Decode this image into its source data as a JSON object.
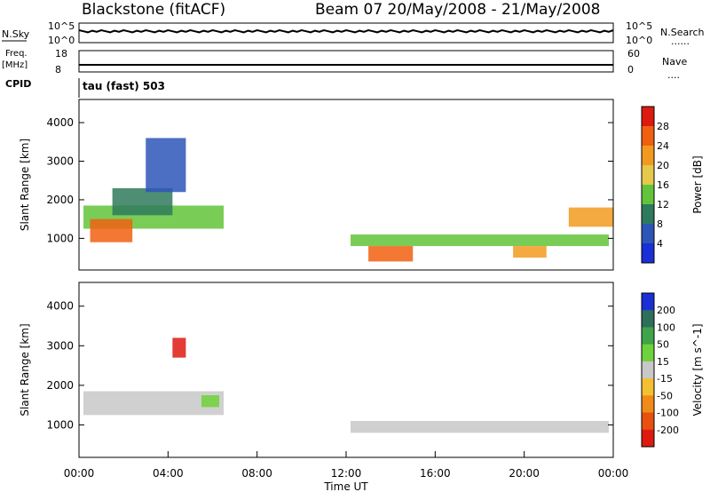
{
  "header": {
    "station": "Blackstone (fitACF)",
    "beam_dates": "Beam 07  20/May/2008 - 21/May/2008"
  },
  "strip_nsky": {
    "left_label": "N.Sky",
    "tick_top": "10^5",
    "tick_bottom": "10^0",
    "right_label": "N.Search",
    "right_legend": "......",
    "right_tick_top": "10^5",
    "right_tick_bottom": "10^0"
  },
  "strip_freq": {
    "left_label_1": "Freq.",
    "left_label_2": "[MHz]",
    "tick_top": "18",
    "tick_bottom": "8",
    "right_label": "Nave",
    "right_legend": "....",
    "right_tick_top": "60",
    "right_tick_bottom": "0"
  },
  "cpid": {
    "label": "CPID",
    "value": "tau (fast) 503"
  },
  "chart_data": [
    {
      "type": "heatmap",
      "name": "power",
      "ylabel": "Slant Range [km]",
      "yticks": [
        "1000",
        "2000",
        "3000",
        "4000"
      ],
      "ylim": [
        180,
        4600
      ],
      "colorbar_label": "Power [dB]",
      "colorbar_ticks": [
        "4",
        "8",
        "12",
        "16",
        "20",
        "24",
        "28"
      ],
      "colors": [
        "#1a2fd6",
        "#2d55b8",
        "#2e7a5c",
        "#62c43a",
        "#e6c84a",
        "#f29a20",
        "#f06010",
        "#dd1a10"
      ],
      "regions_hours_km": [
        {
          "t0": 0.2,
          "t1": 6.5,
          "r0": 1250,
          "r1": 1850,
          "level": 3
        },
        {
          "t0": 0.5,
          "t1": 2.4,
          "r0": 900,
          "r1": 1500,
          "level": 6
        },
        {
          "t0": 1.5,
          "t1": 4.2,
          "r0": 1600,
          "r1": 2300,
          "level": 2
        },
        {
          "t0": 3.0,
          "t1": 4.8,
          "r0": 2200,
          "r1": 3600,
          "level": 1
        },
        {
          "t0": 12.2,
          "t1": 23.8,
          "r0": 800,
          "r1": 1100,
          "level": 3
        },
        {
          "t0": 13.0,
          "t1": 15.0,
          "r0": 400,
          "r1": 800,
          "level": 6
        },
        {
          "t0": 19.5,
          "t1": 21.0,
          "r0": 500,
          "r1": 800,
          "level": 5
        },
        {
          "t0": 22.0,
          "t1": 24.0,
          "r0": 1300,
          "r1": 1800,
          "level": 5
        }
      ]
    },
    {
      "type": "heatmap",
      "name": "velocity",
      "ylabel": "Slant Range [km]",
      "yticks": [
        "1000",
        "2000",
        "3000",
        "4000"
      ],
      "ylim": [
        180,
        4600
      ],
      "colorbar_label": "Velocity [m s^-1]",
      "colorbar_ticks": [
        "200",
        "100",
        "50",
        "15",
        "-15",
        "-50",
        "-100",
        "-200"
      ],
      "colors": [
        "#1a2fd6",
        "#2d6e5c",
        "#3fa34a",
        "#6ed23a",
        "#c8c8c8",
        "#f2c030",
        "#f08a18",
        "#e85010",
        "#dd1a10"
      ],
      "regions_hours_km": [
        {
          "t0": 0.2,
          "t1": 6.5,
          "r0": 1250,
          "r1": 1850,
          "level": 4
        },
        {
          "t0": 5.5,
          "t1": 6.3,
          "r0": 1450,
          "r1": 1750,
          "level": 3
        },
        {
          "t0": 12.2,
          "t1": 23.8,
          "r0": 800,
          "r1": 1100,
          "level": 4
        },
        {
          "t0": 4.2,
          "t1": 4.8,
          "r0": 2700,
          "r1": 3200,
          "level": 8
        }
      ]
    }
  ],
  "x_axis": {
    "ticks": [
      "00:00",
      "04:00",
      "08:00",
      "12:00",
      "16:00",
      "20:00",
      "00:00"
    ],
    "label": "Time UT"
  }
}
